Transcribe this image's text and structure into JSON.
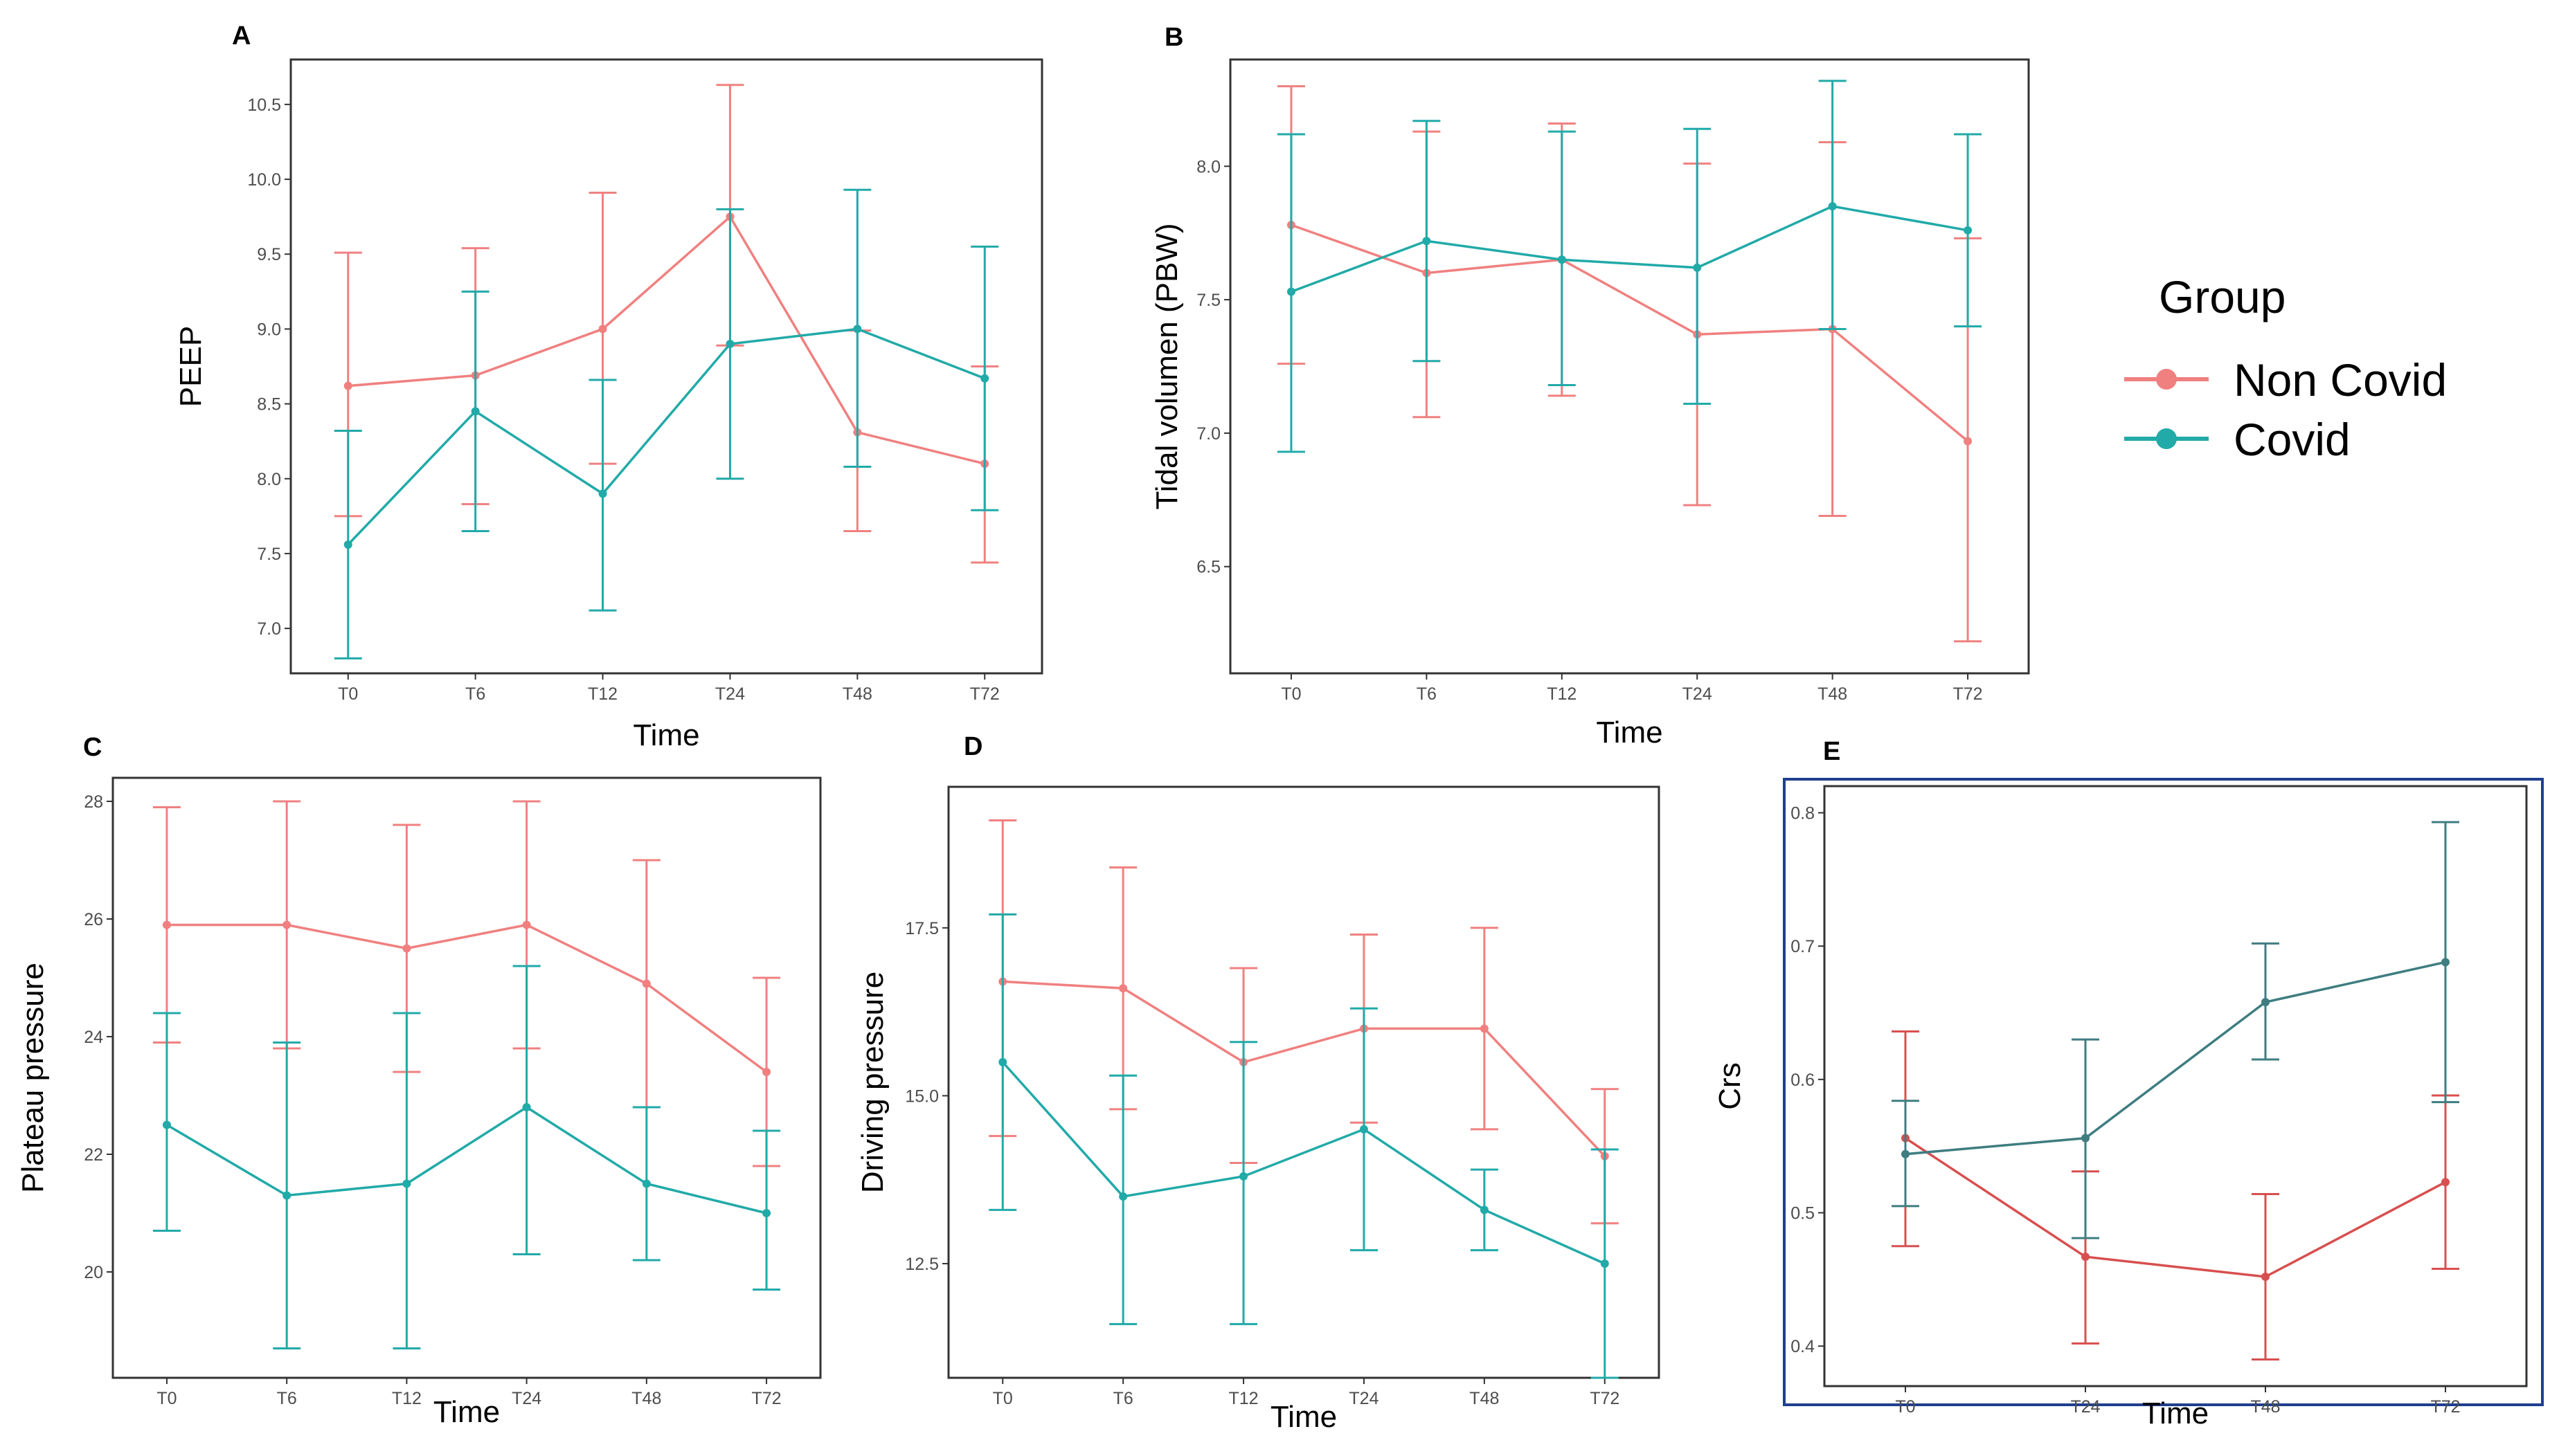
{
  "chart_data": [
    {
      "panel": "A",
      "type": "line",
      "title": "",
      "xlabel": "Time",
      "ylabel": "PEEP",
      "categories": [
        "T0",
        "T6",
        "T12",
        "T24",
        "T48",
        "T72"
      ],
      "ylim": [
        6.7,
        10.8
      ],
      "yticks": [
        7.0,
        7.5,
        8.0,
        8.5,
        9.0,
        9.5,
        10.0,
        10.5
      ],
      "ytick_labels": [
        "7.0",
        "7.5",
        "8.0",
        "8.5",
        "9.0",
        "9.5",
        "10.0",
        "10.5"
      ],
      "series": [
        {
          "name": "Non Covid",
          "color": "#f08080",
          "values": [
            8.62,
            8.69,
            9.0,
            9.75,
            8.31,
            8.1
          ],
          "err_low": [
            7.75,
            7.83,
            8.1,
            8.89,
            7.65,
            7.44
          ],
          "err_high": [
            9.51,
            9.54,
            9.91,
            10.63,
            8.99,
            8.75
          ]
        },
        {
          "name": "Covid",
          "color": "#21aaa8",
          "values": [
            7.56,
            8.45,
            7.9,
            8.9,
            9.0,
            8.67
          ],
          "err_low": [
            6.8,
            7.65,
            7.12,
            8.0,
            8.08,
            7.79
          ],
          "err_high": [
            8.32,
            9.25,
            8.66,
            9.8,
            9.93,
            9.55
          ]
        }
      ]
    },
    {
      "panel": "B",
      "type": "line",
      "title": "",
      "xlabel": "Time",
      "ylabel": "Tidal volumen (PBW)",
      "categories": [
        "T0",
        "T6",
        "T12",
        "T24",
        "T48",
        "T72"
      ],
      "ylim": [
        6.1,
        8.4
      ],
      "yticks": [
        6.5,
        7.0,
        7.5,
        8.0
      ],
      "ytick_labels": [
        "6.5",
        "7.0",
        "7.5",
        "8.0"
      ],
      "series": [
        {
          "name": "Non Covid",
          "color": "#f08080",
          "values": [
            7.78,
            7.6,
            7.65,
            7.37,
            7.39,
            6.97
          ],
          "err_low": [
            7.26,
            7.06,
            7.14,
            6.73,
            6.69,
            6.22
          ],
          "err_high": [
            8.3,
            8.13,
            8.16,
            8.01,
            8.09,
            7.73
          ]
        },
        {
          "name": "Covid",
          "color": "#21aaa8",
          "values": [
            7.53,
            7.72,
            7.65,
            7.62,
            7.85,
            7.76
          ],
          "err_low": [
            6.93,
            7.27,
            7.18,
            7.11,
            7.39,
            7.4
          ],
          "err_high": [
            8.12,
            8.17,
            8.13,
            8.14,
            8.32,
            8.12
          ]
        }
      ]
    },
    {
      "panel": "C",
      "type": "line",
      "title": "",
      "xlabel": "Time",
      "ylabel": "Plateau pressure",
      "categories": [
        "T0",
        "T6",
        "T12",
        "T24",
        "T48",
        "T72"
      ],
      "ylim": [
        18.2,
        28.4
      ],
      "yticks": [
        20,
        22,
        24,
        26,
        28
      ],
      "ytick_labels": [
        "20",
        "22",
        "24",
        "26",
        "28"
      ],
      "series": [
        {
          "name": "Non Covid",
          "color": "#f08080",
          "values": [
            25.9,
            25.9,
            25.5,
            25.9,
            24.9,
            23.4
          ],
          "err_low": [
            23.9,
            23.8,
            23.4,
            23.8,
            22.8,
            21.8
          ],
          "err_high": [
            27.9,
            28.0,
            27.6,
            28.0,
            27.0,
            25.0
          ]
        },
        {
          "name": "Covid",
          "color": "#21aaa8",
          "values": [
            22.5,
            21.3,
            21.5,
            22.8,
            21.5,
            21.0
          ],
          "err_low": [
            20.7,
            18.7,
            18.7,
            20.3,
            20.2,
            19.7
          ],
          "err_high": [
            24.4,
            23.9,
            24.4,
            25.2,
            22.8,
            22.4
          ]
        }
      ]
    },
    {
      "panel": "D",
      "type": "line",
      "title": "",
      "xlabel": "Time",
      "ylabel": "Driving pressure",
      "categories": [
        "T0",
        "T6",
        "T12",
        "T24",
        "T48",
        "T72"
      ],
      "ylim": [
        10.8,
        19.6
      ],
      "yticks": [
        12.5,
        15.0,
        17.5
      ],
      "ytick_labels": [
        "12.5",
        "15.0",
        "17.5"
      ],
      "series": [
        {
          "name": "Non Covid",
          "color": "#f08080",
          "values": [
            16.7,
            16.6,
            15.5,
            16.0,
            16.0,
            14.1
          ],
          "err_low": [
            14.4,
            14.8,
            14.0,
            14.6,
            14.5,
            13.1
          ],
          "err_high": [
            19.1,
            18.4,
            16.9,
            17.4,
            17.5,
            15.1
          ]
        },
        {
          "name": "Covid",
          "color": "#21aaa8",
          "values": [
            15.5,
            13.5,
            13.8,
            14.5,
            13.3,
            12.5
          ],
          "err_low": [
            13.3,
            11.6,
            11.6,
            12.7,
            12.7,
            10.8
          ],
          "err_high": [
            17.7,
            15.3,
            15.8,
            16.3,
            13.9,
            14.2
          ]
        }
      ]
    },
    {
      "panel": "E",
      "type": "line",
      "title": "",
      "xlabel": "Time",
      "ylabel": "Crs",
      "categories": [
        "T0",
        "T24",
        "T48",
        "T72"
      ],
      "ylim": [
        0.37,
        0.82
      ],
      "yticks": [
        0.4,
        0.5,
        0.6,
        0.7,
        0.8
      ],
      "ytick_labels": [
        "0.4",
        "0.5",
        "0.6",
        "0.7",
        "0.8"
      ],
      "series": [
        {
          "name": "Non Covid",
          "color": "#d84f4f",
          "values": [
            0.556,
            0.467,
            0.452,
            0.523
          ],
          "err_low": [
            0.475,
            0.402,
            0.39,
            0.458
          ],
          "err_high": [
            0.636,
            0.531,
            0.514,
            0.588
          ]
        },
        {
          "name": "Covid",
          "color": "#3e7d80",
          "values": [
            0.544,
            0.556,
            0.658,
            0.688
          ],
          "err_low": [
            0.505,
            0.481,
            0.615,
            0.583
          ],
          "err_high": [
            0.584,
            0.63,
            0.702,
            0.793
          ]
        }
      ]
    }
  ],
  "legend": {
    "title": "Group",
    "items": [
      {
        "label": "Non Covid",
        "color": "#f08080"
      },
      {
        "label": "Covid",
        "color": "#21aaa8"
      }
    ]
  },
  "panel_e_border_color": "#1f3f8f"
}
